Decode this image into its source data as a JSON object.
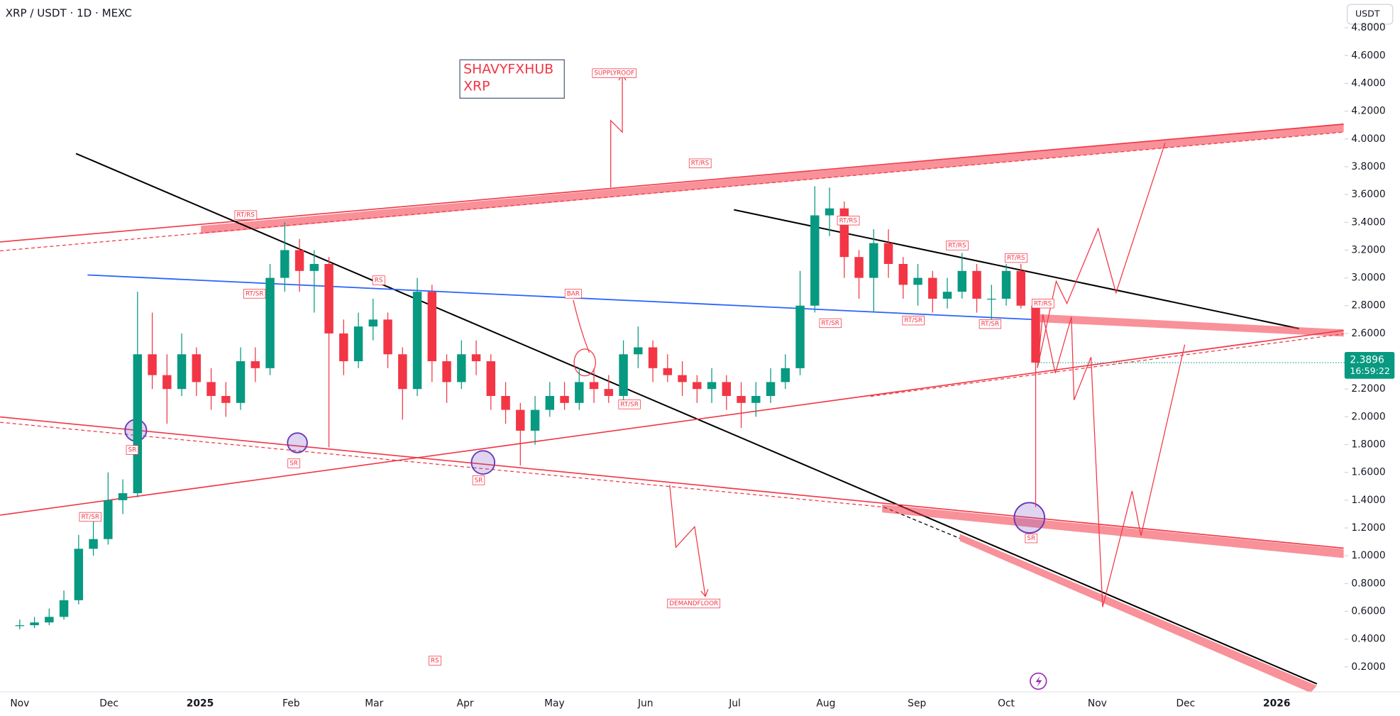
{
  "chart_data": {
    "type": "candlestick",
    "title": "XRP / USDT · 1D · MEXC",
    "currency": "USDT",
    "up_color": "#089981",
    "down_color": "#f23645",
    "open": [
      0.5,
      0.5,
      0.52,
      0.56,
      0.68,
      1.05,
      1.12,
      1.4,
      1.45,
      2.45,
      2.3,
      2.2,
      2.45,
      2.25,
      2.15,
      2.1,
      2.4,
      2.35,
      3.0,
      3.2,
      3.05,
      3.1,
      2.6,
      2.4,
      2.65,
      2.7,
      2.45,
      2.2,
      2.9,
      2.4,
      2.25,
      2.45,
      2.4,
      2.15,
      2.05,
      1.9,
      2.05,
      2.15,
      2.1,
      2.25,
      2.2,
      2.15,
      2.45,
      2.5,
      2.35,
      2.3,
      2.25,
      2.2,
      2.25,
      2.15,
      2.1,
      2.15,
      2.25,
      2.35,
      2.8,
      3.45,
      3.5,
      3.15,
      3.0,
      3.25,
      3.1,
      2.95,
      3.0,
      2.85,
      2.9,
      3.05,
      2.85,
      2.85,
      3.05,
      2.8
    ],
    "high": [
      0.54,
      0.56,
      0.62,
      0.75,
      1.15,
      1.25,
      1.6,
      1.55,
      2.9,
      2.75,
      2.45,
      2.6,
      2.5,
      2.35,
      2.25,
      2.5,
      2.5,
      3.1,
      3.4,
      3.28,
      3.2,
      3.15,
      2.7,
      2.75,
      2.85,
      2.75,
      2.5,
      3.0,
      2.95,
      2.45,
      2.55,
      2.55,
      2.45,
      2.25,
      2.1,
      2.15,
      2.25,
      2.25,
      2.35,
      2.35,
      2.3,
      2.55,
      2.65,
      2.55,
      2.45,
      2.4,
      2.3,
      2.35,
      2.3,
      2.25,
      2.25,
      2.35,
      2.45,
      3.05,
      3.66,
      3.65,
      3.55,
      3.2,
      3.35,
      3.35,
      3.15,
      3.1,
      3.05,
      3.0,
      3.18,
      3.1,
      2.95,
      3.1,
      3.1,
      2.85
    ],
    "low": [
      0.47,
      0.48,
      0.5,
      0.54,
      0.65,
      1.0,
      1.08,
      1.3,
      1.42,
      2.2,
      1.95,
      2.15,
      2.15,
      2.05,
      2.0,
      2.05,
      2.25,
      2.3,
      2.9,
      2.9,
      2.75,
      1.78,
      2.3,
      2.35,
      2.55,
      2.35,
      1.98,
      2.15,
      2.25,
      2.1,
      2.2,
      2.3,
      2.05,
      1.95,
      1.65,
      1.8,
      2.0,
      2.05,
      2.05,
      2.1,
      2.1,
      2.1,
      2.35,
      2.25,
      2.25,
      2.15,
      2.1,
      2.1,
      2.05,
      1.92,
      2.0,
      2.1,
      2.2,
      2.3,
      2.75,
      3.3,
      3.0,
      2.85,
      2.75,
      3.0,
      2.85,
      2.8,
      2.75,
      2.78,
      2.85,
      2.75,
      2.7,
      2.8,
      2.78,
      1.35
    ],
    "close": [
      0.5,
      0.52,
      0.56,
      0.68,
      1.05,
      1.12,
      1.4,
      1.45,
      2.45,
      2.3,
      2.2,
      2.45,
      2.25,
      2.15,
      2.1,
      2.4,
      2.35,
      3.0,
      3.2,
      3.05,
      3.1,
      2.6,
      2.4,
      2.65,
      2.7,
      2.45,
      2.2,
      2.9,
      2.4,
      2.25,
      2.45,
      2.4,
      2.15,
      2.05,
      1.9,
      2.05,
      2.15,
      2.1,
      2.25,
      2.2,
      2.15,
      2.45,
      2.5,
      2.35,
      2.3,
      2.25,
      2.2,
      2.25,
      2.15,
      2.1,
      2.15,
      2.25,
      2.35,
      2.8,
      3.45,
      3.5,
      3.15,
      3.0,
      3.25,
      3.1,
      2.95,
      3.0,
      2.85,
      2.9,
      3.05,
      2.85,
      2.85,
      3.05,
      2.8,
      2.39
    ],
    "ylim": [
      0.02,
      5.0
    ],
    "yticks": [
      {
        "value": 0.2,
        "label": "0.2000"
      },
      {
        "value": 0.4,
        "label": "0.4000"
      },
      {
        "value": 0.6,
        "label": "0.6000"
      },
      {
        "value": 0.8,
        "label": "0.8000"
      },
      {
        "value": 1.0,
        "label": "1.0000"
      },
      {
        "value": 1.2,
        "label": "1.2000"
      },
      {
        "value": 1.4,
        "label": "1.4000"
      },
      {
        "value": 1.6,
        "label": "1.6000"
      },
      {
        "value": 1.8,
        "label": "1.8000"
      },
      {
        "value": 2.0,
        "label": "2.0000"
      },
      {
        "value": 2.2,
        "label": "2.2000"
      },
      {
        "value": 2.6,
        "label": "2.6000"
      },
      {
        "value": 2.8,
        "label": "2.8000"
      },
      {
        "value": 3.0,
        "label": "3.0000"
      },
      {
        "value": 3.2,
        "label": "3.2000"
      },
      {
        "value": 3.4,
        "label": "3.4000"
      },
      {
        "value": 3.6,
        "label": "3.6000"
      },
      {
        "value": 3.8,
        "label": "3.8000"
      },
      {
        "value": 4.0,
        "label": "4.0000"
      },
      {
        "value": 4.2,
        "label": "4.2000"
      },
      {
        "value": 4.4,
        "label": "4.4000"
      },
      {
        "value": 4.6,
        "label": "4.6000"
      },
      {
        "value": 4.8,
        "label": "4.8000"
      }
    ],
    "x_labels": [
      "Nov",
      "Dec",
      "2025",
      "Feb",
      "Mar",
      "Apr",
      "May",
      "Jun",
      "Jul",
      "Aug",
      "Sep",
      "Oct",
      "Nov",
      "Dec",
      "2026"
    ],
    "last_price": {
      "value": 2.3896,
      "label": "2.3896"
    },
    "countdown": "16:59:22",
    "watermark": [
      "SHAVYFXHUB",
      "XRP"
    ],
    "annotations": [
      "SUPPLYROOF",
      "RT/RS",
      "RT/RS",
      "RT/SR",
      "RS",
      "BAR",
      "RT/RS",
      "RT/RS",
      "RT/RS",
      "RT/RS",
      "RT/SR",
      "RT/SR",
      "RT/SR",
      "RT/SR",
      "SR",
      "SR",
      "SR",
      "SR",
      "RT/SR",
      "DEMANDFLOOR",
      "RS"
    ]
  }
}
